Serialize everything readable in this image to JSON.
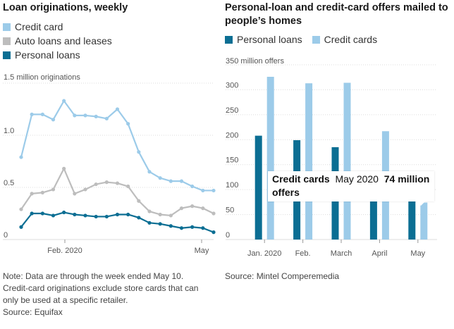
{
  "colors": {
    "credit_card": "#9ccbe9",
    "auto": "#bdbdbd",
    "personal": "#0b6e93",
    "grid": "#dcdcdc",
    "axis": "#999999"
  },
  "chart_data": [
    {
      "type": "line",
      "title": "Loan originations, weekly",
      "unit_label": "1.5 million originations",
      "ylim": [
        0,
        1.5
      ],
      "y_ticks": [
        {
          "value": 0,
          "label": "0"
        },
        {
          "value": 0.5,
          "label": "0.5"
        },
        {
          "value": 1.0,
          "label": "1.0"
        },
        {
          "value": 1.5,
          "label": ""
        }
      ],
      "x_tick_labels": [
        {
          "index": 5,
          "label": "Feb. 2020"
        },
        {
          "index": 21,
          "label": "May"
        }
      ],
      "grid": true,
      "series": [
        {
          "name": "Credit card",
          "color_key": "credit_card",
          "values": [
            0.79,
            1.2,
            1.2,
            1.15,
            1.33,
            1.19,
            1.19,
            1.18,
            1.16,
            1.25,
            1.11,
            0.84,
            0.65,
            0.59,
            0.56,
            0.56,
            0.51,
            0.47,
            0.47
          ]
        },
        {
          "name": "Auto loans and leases",
          "color_key": "auto",
          "values": [
            0.29,
            0.44,
            0.45,
            0.48,
            0.68,
            0.44,
            0.48,
            0.53,
            0.55,
            0.54,
            0.51,
            0.37,
            0.27,
            0.24,
            0.23,
            0.3,
            0.32,
            0.3,
            0.25
          ]
        },
        {
          "name": "Personal loans",
          "color_key": "personal",
          "values": [
            0.12,
            0.25,
            0.25,
            0.23,
            0.26,
            0.24,
            0.23,
            0.22,
            0.22,
            0.24,
            0.24,
            0.21,
            0.16,
            0.15,
            0.13,
            0.11,
            0.12,
            0.11,
            0.07
          ]
        }
      ],
      "x_first_index": 0
    },
    {
      "type": "bar",
      "title": "Personal-loan and credit-card offers mailed to people’s homes",
      "unit_label": "350 million offers",
      "ylim": [
        0,
        350
      ],
      "y_ticks": [
        {
          "value": 0,
          "label": "0"
        },
        {
          "value": 50,
          "label": "50"
        },
        {
          "value": 100,
          "label": "100"
        },
        {
          "value": 150,
          "label": "150"
        },
        {
          "value": 200,
          "label": "200"
        },
        {
          "value": 250,
          "label": "250"
        },
        {
          "value": 300,
          "label": "300"
        },
        {
          "value": 350,
          "label": ""
        }
      ],
      "categories": [
        "Jan. 2020",
        "Feb.",
        "March",
        "April",
        "May"
      ],
      "grid": true,
      "series": [
        {
          "name": "Personal loans",
          "color_key": "personal",
          "values": [
            208,
            199,
            185,
            115,
            80
          ]
        },
        {
          "name": "Credit cards",
          "color_key": "credit_card",
          "values": [
            326,
            313,
            314,
            217,
            74
          ]
        }
      ]
    }
  ],
  "left": {
    "note_lines": [
      "Note: Data are through the week ended May 10.",
      "Credit-card originations exclude store cards that can",
      "only be used at a specific retailer."
    ],
    "source": "Source: Equifax"
  },
  "right": {
    "source": "Source: Mintel Comperemedia",
    "tooltip": {
      "series": "Credit cards",
      "period": "May 2020",
      "value": "74 million",
      "value_suffix": "offers"
    }
  }
}
